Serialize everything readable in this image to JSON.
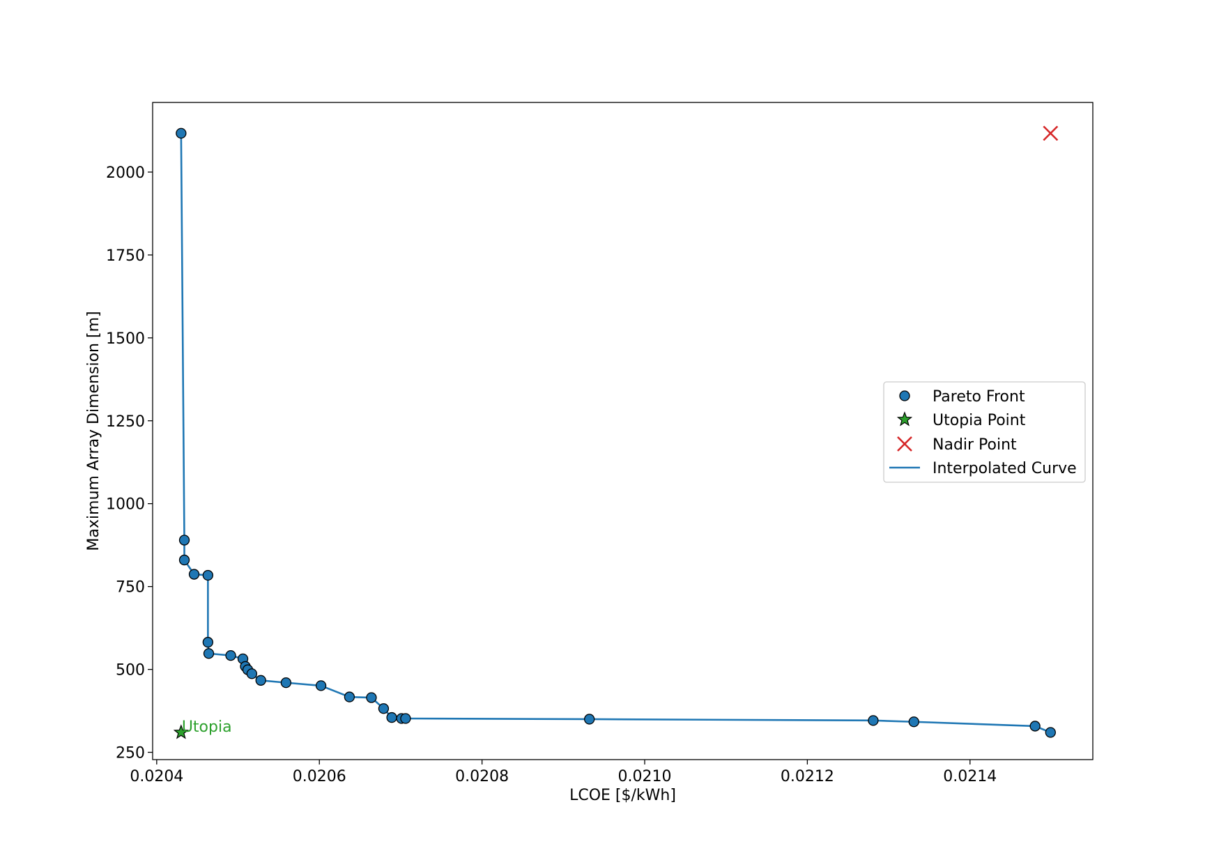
{
  "chart_data": {
    "type": "scatter",
    "title": "",
    "xlabel": "LCOE [$/kWh]",
    "ylabel": "Maximum Array Dimension [m]",
    "xlim": [
      0.020395,
      0.021551
    ],
    "ylim": [
      228,
      2210
    ],
    "grid": false,
    "legend_position": "center-right",
    "x_ticks": [
      0.0204,
      0.0206,
      0.0208,
      0.021,
      0.0212,
      0.0214
    ],
    "x_tick_labels": [
      "0.0204",
      "0.0206",
      "0.0208",
      "0.0210",
      "0.0212",
      "0.0214"
    ],
    "y_ticks": [
      250,
      500,
      750,
      1000,
      1250,
      1500,
      1750,
      2000
    ],
    "y_tick_labels": [
      "250",
      "500",
      "750",
      "1000",
      "1250",
      "1500",
      "1750",
      "2000"
    ],
    "series": [
      {
        "name": "Pareto Front",
        "kind": "scatter",
        "color": "#1f77b4",
        "x": [
          0.02043,
          0.020434,
          0.020434,
          0.020446,
          0.020463,
          0.020463,
          0.020464,
          0.020491,
          0.020506,
          0.020509,
          0.020512,
          0.020517,
          0.020528,
          0.020559,
          0.020602,
          0.020637,
          0.020664,
          0.020679,
          0.020689,
          0.020701,
          0.020706,
          0.020932,
          0.021281,
          0.021331,
          0.02148,
          0.021499
        ],
        "y": [
          2117,
          890,
          830,
          787,
          784,
          582,
          548,
          542,
          532,
          509,
          499,
          487,
          467,
          460,
          451,
          417,
          415,
          382,
          355,
          352,
          352,
          350,
          346,
          342,
          329,
          310
        ]
      },
      {
        "name": "Utopia Point",
        "kind": "star",
        "color": "#2ca02c",
        "x": [
          0.02043
        ],
        "y": [
          310
        ]
      },
      {
        "name": "Nadir Point",
        "kind": "x",
        "color": "#d62728",
        "x": [
          0.021499
        ],
        "y": [
          2117
        ]
      },
      {
        "name": "Interpolated Curve",
        "kind": "line",
        "color": "#1f77b4",
        "x": [
          0.02043,
          0.020434,
          0.020434,
          0.020446,
          0.020463,
          0.020463,
          0.020464,
          0.020491,
          0.020506,
          0.020509,
          0.020512,
          0.020517,
          0.020528,
          0.020559,
          0.020602,
          0.020637,
          0.020664,
          0.020679,
          0.020689,
          0.020701,
          0.020706,
          0.020932,
          0.021281,
          0.021331,
          0.02148,
          0.021499
        ],
        "y": [
          2117,
          890,
          830,
          787,
          784,
          582,
          548,
          542,
          532,
          509,
          499,
          487,
          467,
          460,
          451,
          417,
          415,
          382,
          355,
          352,
          352,
          350,
          346,
          342,
          329,
          310
        ]
      }
    ],
    "annotations": [
      {
        "text": "Utopia",
        "x": 0.02043,
        "y": 310,
        "color": "#2ca02c"
      }
    ]
  }
}
